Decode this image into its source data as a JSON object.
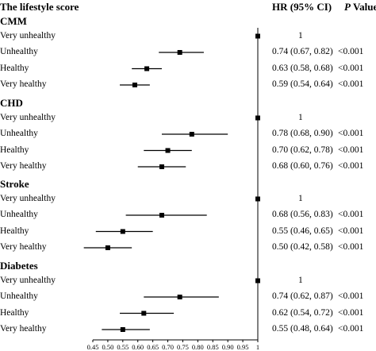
{
  "header": {
    "title": "The lifestyle score",
    "hr_col": "HR (95% CI)",
    "p_col_italic": "P",
    "p_col_rest": " Value"
  },
  "chart_data": {
    "type": "forest",
    "x_axis": {
      "range": [
        0.45,
        1.0
      ],
      "ticks": [
        0.45,
        0.5,
        0.55,
        0.6,
        0.65,
        0.7,
        0.75,
        0.8,
        0.85,
        0.9,
        0.95,
        1.0
      ],
      "tick_labels": [
        "0.45",
        "0.50",
        "0.55",
        "0.60",
        "0.65",
        "0.70",
        "0.75",
        "0.80",
        "0.85",
        "0.90",
        "0.95",
        "1"
      ],
      "reference_line": 1.0
    },
    "groups": [
      {
        "name": "CMM",
        "rows": [
          {
            "label": "Very unhealthy",
            "hr": 1.0,
            "lo": null,
            "hi": null,
            "text": "1",
            "p": ""
          },
          {
            "label": "Unhealthy",
            "hr": 0.74,
            "lo": 0.67,
            "hi": 0.82,
            "text": "0.74 (0.67, 0.82)",
            "p": "<0.001"
          },
          {
            "label": "Healthy",
            "hr": 0.63,
            "lo": 0.58,
            "hi": 0.68,
            "text": "0.63 (0.58, 0.68)",
            "p": "<0.001"
          },
          {
            "label": "Very healthy",
            "hr": 0.59,
            "lo": 0.54,
            "hi": 0.64,
            "text": "0.59 (0.54, 0.64)",
            "p": "<0.001"
          }
        ]
      },
      {
        "name": "CHD",
        "rows": [
          {
            "label": "Very unhealthy",
            "hr": 1.0,
            "lo": null,
            "hi": null,
            "text": "1",
            "p": ""
          },
          {
            "label": "Unhealthy",
            "hr": 0.78,
            "lo": 0.68,
            "hi": 0.9,
            "text": "0.78 (0.68, 0.90)",
            "p": "<0.001"
          },
          {
            "label": "Healthy",
            "hr": 0.7,
            "lo": 0.62,
            "hi": 0.78,
            "text": "0.70 (0.62, 0.78)",
            "p": "<0.001"
          },
          {
            "label": "Very healthy",
            "hr": 0.68,
            "lo": 0.6,
            "hi": 0.76,
            "text": "0.68 (0.60, 0.76)",
            "p": "<0.001"
          }
        ]
      },
      {
        "name": "Stroke",
        "rows": [
          {
            "label": "Very unhealthy",
            "hr": 1.0,
            "lo": null,
            "hi": null,
            "text": "1",
            "p": ""
          },
          {
            "label": "Unhealthy",
            "hr": 0.68,
            "lo": 0.56,
            "hi": 0.83,
            "text": "0.68 (0.56, 0.83)",
            "p": "<0.001"
          },
          {
            "label": "Healthy",
            "hr": 0.55,
            "lo": 0.46,
            "hi": 0.65,
            "text": "0.55 (0.46, 0.65)",
            "p": "<0.001"
          },
          {
            "label": "Very healthy",
            "hr": 0.5,
            "lo": 0.42,
            "hi": 0.58,
            "text": "0.50 (0.42, 0.58)",
            "p": "<0.001"
          }
        ]
      },
      {
        "name": "Diabetes",
        "rows": [
          {
            "label": "Very unhealthy",
            "hr": 1.0,
            "lo": null,
            "hi": null,
            "text": "1",
            "p": ""
          },
          {
            "label": "Unhealthy",
            "hr": 0.74,
            "lo": 0.62,
            "hi": 0.87,
            "text": "0.74 (0.62, 0.87)",
            "p": "<0.001"
          },
          {
            "label": "Healthy",
            "hr": 0.62,
            "lo": 0.54,
            "hi": 0.72,
            "text": "0.62 (0.54, 0.72)",
            "p": "<0.001"
          },
          {
            "label": "Very healthy",
            "hr": 0.55,
            "lo": 0.48,
            "hi": 0.64,
            "text": "0.55 (0.48, 0.64)",
            "p": "<0.001"
          }
        ]
      }
    ]
  }
}
